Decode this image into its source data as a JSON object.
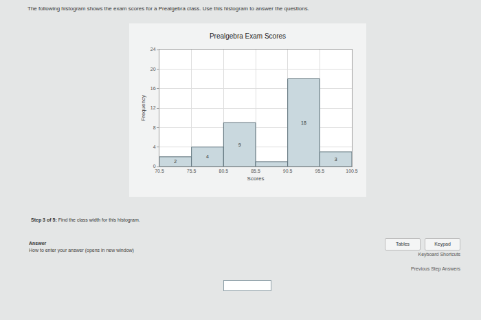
{
  "chart_data": {
    "type": "histogram",
    "title": "Prealgebra Exam Scores",
    "x_label": "Scores",
    "y_label": "Frequency",
    "bins": [
      70.5,
      75.5,
      80.5,
      85.5,
      90.5,
      95.5,
      100.5
    ],
    "values": [
      2,
      4,
      9,
      1,
      18,
      3
    ],
    "value_labels": [
      "2",
      "4",
      "9",
      null,
      "18",
      "3"
    ],
    "data_labels": true,
    "color": "#c9d8de",
    "xlim": [
      70.5,
      100.5
    ],
    "xticks": [
      70.5,
      75.5,
      80.5,
      85.5,
      90.5,
      95.5,
      100.5
    ],
    "ylim": [
      0,
      24
    ],
    "yticks": [
      0,
      4,
      8,
      12,
      16,
      20,
      24
    ],
    "grid": true
  },
  "page": {
    "instruction": "The following histogram shows the exam scores for a Prealgebra class. Use this histogram to answer the questions.",
    "step_label": "Step 3 of 5:",
    "step_text": "Find the class width for this histogram.",
    "answer_heading": "Answer",
    "answer_help": "How to enter your answer (opens in new window)",
    "buttons": [
      "Tables",
      "Keypad"
    ],
    "links": [
      "Keyboard Shortcuts",
      "Previous Step Answers"
    ]
  }
}
